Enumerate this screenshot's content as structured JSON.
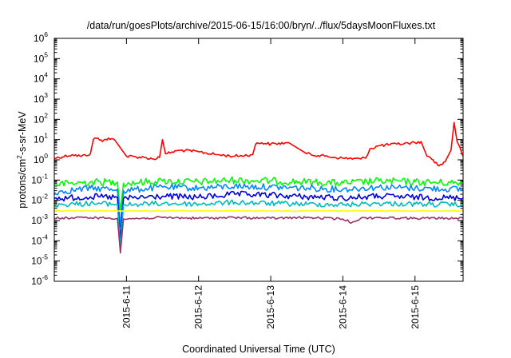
{
  "chart_data": {
    "type": "line",
    "title": "/data/run/goesPlots/archive/2015-06-15/16:00/bryn/../flux/5daysMoonFluxes.txt",
    "xlabel": "Coordinated Universal Time (UTC)",
    "ylabel": {
      "pre": "protons/cm",
      "sup": "2",
      "post": "-s-sr-MeV"
    },
    "x_scale": "time",
    "xlim": [
      "2015-06-10T00:00",
      "2015-06-15T16:00"
    ],
    "x_ticks": [
      "2015-6-11",
      "2015-6-12",
      "2015-6-13",
      "2015-6-14",
      "2015-6-15"
    ],
    "y_scale": "log",
    "ylim": [
      1e-06,
      1000000.0
    ],
    "y_ticks": [
      {
        "base": "10",
        "exp": "-6",
        "value": 1e-06
      },
      {
        "base": "10",
        "exp": "-5",
        "value": 1e-05
      },
      {
        "base": "10",
        "exp": "-4",
        "value": 0.0001
      },
      {
        "base": "10",
        "exp": "-3",
        "value": 0.001
      },
      {
        "base": "10",
        "exp": "-2",
        "value": 0.01
      },
      {
        "base": "10",
        "exp": "-1",
        "value": 0.1
      },
      {
        "base": "10",
        "exp": "0",
        "value": 1
      },
      {
        "base": "10",
        "exp": "1",
        "value": 10
      },
      {
        "base": "10",
        "exp": "2",
        "value": 100
      },
      {
        "base": "10",
        "exp": "3",
        "value": 1000
      },
      {
        "base": "10",
        "exp": "4",
        "value": 10000
      },
      {
        "base": "10",
        "exp": "5",
        "value": 100000
      },
      {
        "base": "10",
        "exp": "6",
        "value": 1000000
      }
    ],
    "grid": false,
    "legend": "none",
    "series": [
      {
        "color": "#ff0000",
        "points": [
          [
            "2015-06-10T00:00",
            1.2
          ],
          [
            "2015-06-10T06:00",
            1.8
          ],
          [
            "2015-06-10T09:00",
            1.5
          ],
          [
            "2015-06-10T12:00",
            2.0
          ],
          [
            "2015-06-10T13:00",
            10
          ],
          [
            "2015-06-10T14:30",
            12
          ],
          [
            "2015-06-10T16:00",
            8
          ],
          [
            "2015-06-10T18:00",
            12
          ],
          [
            "2015-06-10T20:00",
            10
          ],
          [
            "2015-06-11T00:00",
            1.5
          ],
          [
            "2015-06-11T06:00",
            1.3
          ],
          [
            "2015-06-11T09:00",
            1.1
          ],
          [
            "2015-06-11T11:00",
            1.3
          ],
          [
            "2015-06-11T12:00",
            10
          ],
          [
            "2015-06-11T13:00",
            2.0
          ],
          [
            "2015-06-11T18:00",
            3.0
          ],
          [
            "2015-06-12T00:00",
            2.5
          ],
          [
            "2015-06-12T06:00",
            1.8
          ],
          [
            "2015-06-12T12:00",
            1.5
          ],
          [
            "2015-06-12T18:00",
            1.8
          ],
          [
            "2015-06-12T19:00",
            6
          ],
          [
            "2015-06-12T21:00",
            7
          ],
          [
            "2015-06-13T00:00",
            6
          ],
          [
            "2015-06-13T06:00",
            7
          ],
          [
            "2015-06-13T12:00",
            2.0
          ],
          [
            "2015-06-13T18:00",
            1.5
          ],
          [
            "2015-06-14T00:00",
            1.2
          ],
          [
            "2015-06-14T06:00",
            1.1
          ],
          [
            "2015-06-14T08:00",
            1.5
          ],
          [
            "2015-06-14T09:00",
            3.5
          ],
          [
            "2015-06-14T12:00",
            5
          ],
          [
            "2015-06-14T18:00",
            6
          ],
          [
            "2015-06-15T00:00",
            7
          ],
          [
            "2015-06-15T02:00",
            8
          ],
          [
            "2015-06-15T04:00",
            1.5
          ],
          [
            "2015-06-15T06:00",
            1.0
          ],
          [
            "2015-06-15T08:00",
            0.5
          ],
          [
            "2015-06-15T10:00",
            0.8
          ],
          [
            "2015-06-15T12:00",
            3.0
          ],
          [
            "2015-06-15T13:00",
            70
          ],
          [
            "2015-06-15T14:00",
            8
          ],
          [
            "2015-06-15T15:00",
            4
          ],
          [
            "2015-06-15T16:00",
            1.5
          ]
        ]
      },
      {
        "color": "#00ff00",
        "points": [
          [
            "2015-06-10T00:00",
            0.06
          ],
          [
            "2015-06-10T12:00",
            0.08
          ],
          [
            "2015-06-10T21:00",
            0.08
          ],
          [
            "2015-06-10T22:00",
            0.003
          ],
          [
            "2015-06-10T23:00",
            0.07
          ],
          [
            "2015-06-11T12:00",
            0.09
          ],
          [
            "2015-06-12T00:00",
            0.08
          ],
          [
            "2015-06-12T12:00",
            0.1
          ],
          [
            "2015-06-13T00:00",
            0.09
          ],
          [
            "2015-06-13T12:00",
            0.08
          ],
          [
            "2015-06-14T00:00",
            0.07
          ],
          [
            "2015-06-14T12:00",
            0.09
          ],
          [
            "2015-06-15T00:00",
            0.08
          ],
          [
            "2015-06-15T16:00",
            0.07
          ]
        ]
      },
      {
        "color": "#0088ff",
        "points": [
          [
            "2015-06-10T00:00",
            0.025
          ],
          [
            "2015-06-10T12:00",
            0.04
          ],
          [
            "2015-06-10T21:00",
            0.035
          ],
          [
            "2015-06-10T22:00",
            0.0005
          ],
          [
            "2015-06-10T23:00",
            0.03
          ],
          [
            "2015-06-11T12:00",
            0.045
          ],
          [
            "2015-06-12T00:00",
            0.04
          ],
          [
            "2015-06-12T12:00",
            0.05
          ],
          [
            "2015-06-13T00:00",
            0.045
          ],
          [
            "2015-06-13T12:00",
            0.04
          ],
          [
            "2015-06-14T00:00",
            0.035
          ],
          [
            "2015-06-14T12:00",
            0.045
          ],
          [
            "2015-06-15T00:00",
            0.04
          ],
          [
            "2015-06-15T16:00",
            0.035
          ]
        ]
      },
      {
        "color": "#0000dd",
        "points": [
          [
            "2015-06-10T00:00",
            0.012
          ],
          [
            "2015-06-10T12:00",
            0.015
          ],
          [
            "2015-06-10T21:00",
            0.014
          ],
          [
            "2015-06-10T22:00",
            0.0001
          ],
          [
            "2015-06-10T23:00",
            0.012
          ],
          [
            "2015-06-11T12:00",
            0.016
          ],
          [
            "2015-06-12T00:00",
            0.014
          ],
          [
            "2015-06-12T12:00",
            0.02
          ],
          [
            "2015-06-13T00:00",
            0.018
          ],
          [
            "2015-06-13T12:00",
            0.015
          ],
          [
            "2015-06-14T00:00",
            0.013
          ],
          [
            "2015-06-14T12:00",
            0.016
          ],
          [
            "2015-06-15T00:00",
            0.014
          ],
          [
            "2015-06-15T16:00",
            0.013
          ]
        ]
      },
      {
        "color": "#00bbbb",
        "points": [
          [
            "2015-06-10T00:00",
            0.006
          ],
          [
            "2015-06-10T12:00",
            0.007
          ],
          [
            "2015-06-10T21:00",
            0.0065
          ],
          [
            "2015-06-10T22:00",
            4e-05
          ],
          [
            "2015-06-10T23:00",
            0.006
          ],
          [
            "2015-06-11T12:00",
            0.007
          ],
          [
            "2015-06-12T00:00",
            0.0065
          ],
          [
            "2015-06-12T12:00",
            0.008
          ],
          [
            "2015-06-13T00:00",
            0.007
          ],
          [
            "2015-06-13T12:00",
            0.0065
          ],
          [
            "2015-06-14T00:00",
            0.006
          ],
          [
            "2015-06-14T12:00",
            0.007
          ],
          [
            "2015-06-15T00:00",
            0.0065
          ],
          [
            "2015-06-15T16:00",
            0.006
          ]
        ]
      },
      {
        "color": "#ffff00",
        "points": [
          [
            "2015-06-10T00:00",
            0.003
          ],
          [
            "2015-06-11T00:00",
            0.003
          ],
          [
            "2015-06-12T00:00",
            0.003
          ],
          [
            "2015-06-13T00:00",
            0.003
          ],
          [
            "2015-06-14T00:00",
            0.003
          ],
          [
            "2015-06-15T00:00",
            0.003
          ],
          [
            "2015-06-15T16:00",
            0.003
          ]
        ]
      },
      {
        "color": "#993366",
        "points": [
          [
            "2015-06-10T00:00",
            0.0013
          ],
          [
            "2015-06-10T12:00",
            0.0014
          ],
          [
            "2015-06-10T21:00",
            0.0013
          ],
          [
            "2015-06-10T22:00",
            2.5e-05
          ],
          [
            "2015-06-10T23:00",
            0.0012
          ],
          [
            "2015-06-11T12:00",
            0.0014
          ],
          [
            "2015-06-12T00:00",
            0.0013
          ],
          [
            "2015-06-12T12:00",
            0.0014
          ],
          [
            "2015-06-13T00:00",
            0.0013
          ],
          [
            "2015-06-13T12:00",
            0.0014
          ],
          [
            "2015-06-14T00:00",
            0.0012
          ],
          [
            "2015-06-14T03:00",
            0.0008
          ],
          [
            "2015-06-14T06:00",
            0.0013
          ],
          [
            "2015-06-14T12:00",
            0.0014
          ],
          [
            "2015-06-15T00:00",
            0.0013
          ],
          [
            "2015-06-15T16:00",
            0.0013
          ]
        ]
      }
    ]
  }
}
